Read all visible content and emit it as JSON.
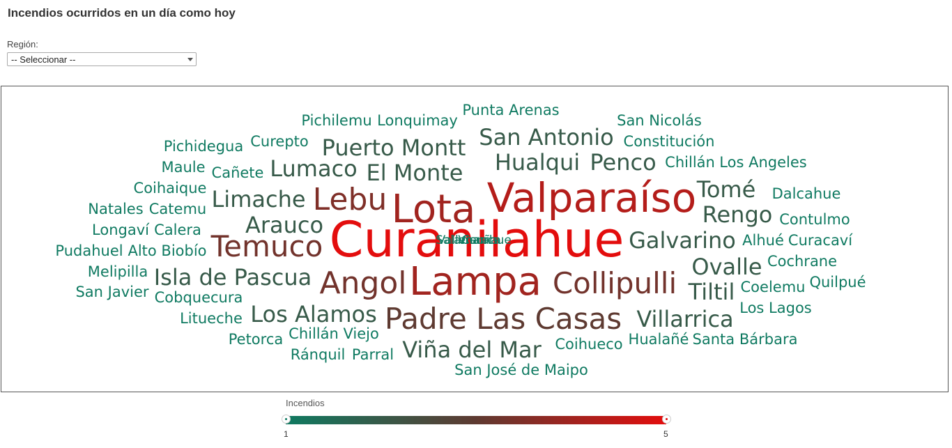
{
  "page": {
    "title": "Incendios ocurridos en un día como hoy"
  },
  "filters": {
    "region_label": "Región:",
    "region_selected": "-- Seleccionar --"
  },
  "legend": {
    "title": "Incendios",
    "min_label": "1",
    "max_label": "5",
    "color_min": "#0f7a61",
    "color_mid": "#5e3a31",
    "color_max": "#e30d0d"
  },
  "word_cloud": {
    "words": [
      {
        "text": "Curanilahue",
        "count": 5
      },
      {
        "text": "Valparaíso",
        "count": 4.3
      },
      {
        "text": "Lota",
        "count": 4
      },
      {
        "text": "Lampa",
        "count": 4
      },
      {
        "text": "Lebu",
        "count": 3.5
      },
      {
        "text": "Temuco",
        "count": 3.3
      },
      {
        "text": "Angol",
        "count": 3.3
      },
      {
        "text": "Collipulli",
        "count": 3.3
      },
      {
        "text": "Padre Las Casas",
        "count": 3
      },
      {
        "text": "Puerto Montt",
        "count": 2
      },
      {
        "text": "San Antonio",
        "count": 2
      },
      {
        "text": "Lumaco",
        "count": 2
      },
      {
        "text": "El Monte",
        "count": 2
      },
      {
        "text": "Hualqui",
        "count": 2
      },
      {
        "text": "Penco",
        "count": 2
      },
      {
        "text": "Limache",
        "count": 2
      },
      {
        "text": "Arauco",
        "count": 2
      },
      {
        "text": "Tomé",
        "count": 2
      },
      {
        "text": "Rengo",
        "count": 2
      },
      {
        "text": "Galvarino",
        "count": 2
      },
      {
        "text": "Ovalle",
        "count": 2
      },
      {
        "text": "Tiltil",
        "count": 2
      },
      {
        "text": "Isla de Pascua",
        "count": 2
      },
      {
        "text": "Los Alamos",
        "count": 2
      },
      {
        "text": "Villarrica",
        "count": 2
      },
      {
        "text": "Viña del Mar",
        "count": 2
      },
      {
        "text": "Pichilemu",
        "count": 1
      },
      {
        "text": "Lonquimay",
        "count": 1
      },
      {
        "text": "Punta Arenas",
        "count": 1
      },
      {
        "text": "San Nicolás",
        "count": 1
      },
      {
        "text": "Constitución",
        "count": 1
      },
      {
        "text": "Pichidegua",
        "count": 1
      },
      {
        "text": "Curepto",
        "count": 1
      },
      {
        "text": "Maule",
        "count": 1
      },
      {
        "text": "Cañete",
        "count": 1
      },
      {
        "text": "Chillán",
        "count": 1
      },
      {
        "text": "Los Angeles",
        "count": 1
      },
      {
        "text": "Coihaique",
        "count": 1
      },
      {
        "text": "Dalcahue",
        "count": 1
      },
      {
        "text": "Natales",
        "count": 1
      },
      {
        "text": "Catemu",
        "count": 1
      },
      {
        "text": "Contulmo",
        "count": 1
      },
      {
        "text": "Longaví",
        "count": 1
      },
      {
        "text": "Calera",
        "count": 1
      },
      {
        "text": "Pudahuel",
        "count": 1
      },
      {
        "text": "Alto Biobío",
        "count": 1
      },
      {
        "text": "Alhué",
        "count": 1
      },
      {
        "text": "Curacaví",
        "count": 1
      },
      {
        "text": "Melipilla",
        "count": 1
      },
      {
        "text": "Cochrane",
        "count": 1
      },
      {
        "text": "San Javier",
        "count": 1
      },
      {
        "text": "Cobquecura",
        "count": 1
      },
      {
        "text": "Coelemu",
        "count": 1
      },
      {
        "text": "Quilpué",
        "count": 1
      },
      {
        "text": "Los Lagos",
        "count": 1
      },
      {
        "text": "Litueche",
        "count": 1
      },
      {
        "text": "Chillán Viejo",
        "count": 1
      },
      {
        "text": "Petorca",
        "count": 1
      },
      {
        "text": "Hualañé",
        "count": 1
      },
      {
        "text": "Santa Bárbara",
        "count": 1
      },
      {
        "text": "Coihueco",
        "count": 1
      },
      {
        "text": "Ránquil",
        "count": 1
      },
      {
        "text": "Parral",
        "count": 1
      },
      {
        "text": "San José de Maipo",
        "count": 1
      },
      {
        "text": "Salamanca",
        "count": 1
      },
      {
        "text": "Vallenar",
        "count": 1
      },
      {
        "text": "Vicuña",
        "count": 1
      },
      {
        "text": "Carahue",
        "count": 1
      }
    ]
  }
}
